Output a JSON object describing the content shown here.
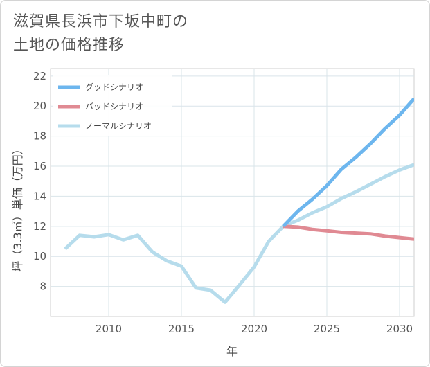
{
  "header": {
    "title_line1": "滋賀県長浜市下坂中町の",
    "title_line2": "土地の価格推移"
  },
  "chart_data": {
    "type": "line",
    "title": "滋賀県長浜市下坂中町の土地の価格推移",
    "xlabel": "年",
    "ylabel": "坪（3.3㎡）単価（万円）",
    "xlim": [
      2006,
      2031
    ],
    "ylim": [
      6,
      22.5
    ],
    "x_ticks": [
      2010,
      2015,
      2020,
      2025,
      2030
    ],
    "y_ticks": [
      8,
      10,
      12,
      14,
      16,
      18,
      20,
      22
    ],
    "grid": true,
    "legend_position": "top-left",
    "series": [
      {
        "name": "グッドシナリオ",
        "color": "#6db6ee",
        "x": [
          2022,
          2023,
          2024,
          2025,
          2026,
          2027,
          2028,
          2029,
          2030,
          2031
        ],
        "y": [
          12.0,
          13.0,
          13.8,
          14.7,
          15.8,
          16.6,
          17.5,
          18.5,
          19.4,
          20.5
        ]
      },
      {
        "name": "バッドシナリオ",
        "color": "#e08a93",
        "x": [
          2022,
          2023,
          2024,
          2025,
          2026,
          2027,
          2028,
          2029,
          2030,
          2031
        ],
        "y": [
          12.0,
          11.95,
          11.8,
          11.7,
          11.6,
          11.55,
          11.5,
          11.35,
          11.25,
          11.15
        ]
      },
      {
        "name": "ノーマルシナリオ",
        "color": "#b6dcec",
        "x": [
          2007,
          2008,
          2009,
          2010,
          2011,
          2012,
          2013,
          2014,
          2015,
          2016,
          2017,
          2018,
          2019,
          2020,
          2021,
          2022,
          2023,
          2024,
          2025,
          2026,
          2027,
          2028,
          2029,
          2030,
          2031
        ],
        "y": [
          10.5,
          11.4,
          11.3,
          11.45,
          11.1,
          11.4,
          10.3,
          9.7,
          9.35,
          7.9,
          7.75,
          6.95,
          8.1,
          9.3,
          11.0,
          12.0,
          12.4,
          12.9,
          13.3,
          13.85,
          14.3,
          14.8,
          15.3,
          15.75,
          16.1
        ]
      }
    ]
  }
}
